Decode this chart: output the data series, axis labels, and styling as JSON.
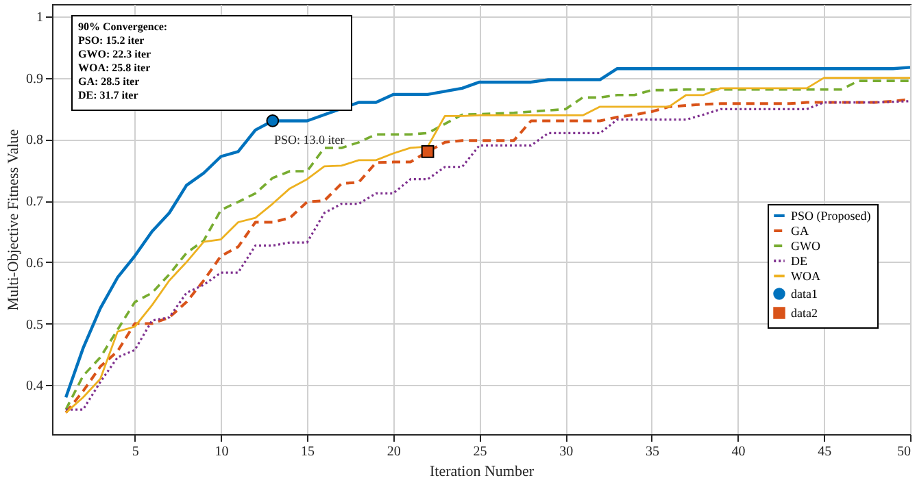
{
  "chart_data": {
    "type": "line",
    "xlabel": "Iteration Number",
    "ylabel": "Multi-Objective Fitness Value",
    "x": [
      1,
      2,
      3,
      4,
      5,
      6,
      7,
      8,
      9,
      10,
      11,
      12,
      13,
      14,
      15,
      16,
      17,
      18,
      19,
      20,
      21,
      22,
      23,
      24,
      25,
      26,
      27,
      28,
      29,
      30,
      31,
      32,
      33,
      34,
      35,
      36,
      37,
      38,
      39,
      40,
      41,
      42,
      43,
      44,
      45,
      46,
      47,
      48,
      49,
      50
    ],
    "xlim": [
      0.2,
      50
    ],
    "xticks": [
      5,
      10,
      15,
      20,
      25,
      30,
      35,
      40,
      45,
      50
    ],
    "ylim": [
      0.32,
      1.02
    ],
    "yticks": [
      0.4,
      0.5,
      0.6,
      0.7,
      0.8,
      0.9,
      {
        "value": 1,
        "label": "1"
      }
    ],
    "grid": true,
    "legend": "right",
    "series": [
      {
        "name": "PSO (Proposed)",
        "color": "#0072bd",
        "line_style": "solid",
        "values": [
          0.38,
          0.46,
          0.525,
          0.575,
          0.61,
          0.65,
          0.68,
          0.725,
          0.745,
          0.772,
          0.78,
          0.815,
          0.83,
          0.83,
          0.83,
          null,
          null,
          0.86,
          0.86,
          0.873,
          0.873,
          0.873,
          0.878,
          0.883,
          0.893,
          0.893,
          0.893,
          0.893,
          0.897,
          0.897,
          0.897,
          0.897,
          0.915,
          0.915,
          0.915,
          0.915,
          0.915,
          0.915,
          0.915,
          0.915,
          0.915,
          0.915,
          0.915,
          0.915,
          0.915,
          0.915,
          0.915,
          0.915,
          0.915,
          0.917
        ]
      },
      {
        "name": "GA",
        "color": "#d95319",
        "line_style": "dashed",
        "values": [
          0.355,
          0.39,
          0.43,
          0.455,
          0.5,
          0.5,
          0.51,
          0.535,
          0.57,
          0.61,
          0.625,
          0.665,
          0.665,
          0.672,
          0.698,
          0.7,
          0.728,
          0.73,
          0.762,
          0.763,
          0.763,
          0.78,
          0.795,
          0.798,
          0.798,
          0.798,
          0.798,
          0.83,
          0.83,
          0.83,
          0.83,
          0.83,
          0.836,
          0.84,
          0.845,
          0.853,
          0.855,
          0.857,
          0.858,
          0.858,
          0.858,
          0.858,
          0.858,
          0.86,
          0.86,
          0.86,
          0.86,
          0.86,
          0.862,
          0.865
        ]
      },
      {
        "name": "GWO",
        "color": "#77ac30",
        "line_style": "dashed",
        "values": [
          0.36,
          0.415,
          0.445,
          0.49,
          0.535,
          0.55,
          0.58,
          0.615,
          0.635,
          0.685,
          0.698,
          0.712,
          0.737,
          0.748,
          0.748,
          0.786,
          0.786,
          0.795,
          0.808,
          0.808,
          0.808,
          0.81,
          0.825,
          0.84,
          0.841,
          0.842,
          0.843,
          0.845,
          0.847,
          0.849,
          0.868,
          0.868,
          0.872,
          0.872,
          0.88,
          0.88,
          0.881,
          0.881,
          0.881,
          0.881,
          0.881,
          0.881,
          0.881,
          0.881,
          0.881,
          0.881,
          0.895,
          0.895,
          0.895,
          0.895
        ]
      },
      {
        "name": "DE",
        "color": "#7e2f8e",
        "line_style": "dotted",
        "values": [
          0.36,
          0.36,
          0.405,
          0.445,
          0.457,
          0.505,
          0.51,
          0.55,
          0.563,
          0.583,
          0.583,
          0.627,
          0.627,
          0.632,
          0.632,
          0.68,
          0.695,
          0.695,
          0.712,
          0.712,
          0.735,
          0.735,
          0.755,
          0.755,
          0.79,
          0.79,
          0.79,
          0.79,
          0.81,
          0.81,
          0.81,
          0.81,
          0.832,
          0.832,
          0.832,
          0.832,
          0.832,
          0.84,
          0.849,
          0.849,
          0.849,
          0.849,
          0.849,
          0.849,
          0.86,
          0.86,
          0.86,
          0.86,
          0.861,
          0.862
        ]
      },
      {
        "name": "WOA",
        "color": "#edb120",
        "line_style": "solid",
        "values": [
          0.355,
          0.38,
          0.41,
          0.487,
          0.495,
          0.53,
          0.57,
          0.6,
          0.633,
          0.637,
          0.665,
          0.672,
          0.695,
          0.72,
          0.735,
          0.756,
          0.757,
          0.766,
          0.766,
          0.777,
          0.786,
          0.788,
          0.838,
          0.838,
          0.839,
          0.839,
          0.839,
          0.839,
          0.839,
          0.839,
          0.839,
          0.853,
          0.853,
          0.853,
          0.853,
          0.853,
          0.872,
          0.872,
          0.883,
          0.883,
          0.883,
          0.883,
          0.883,
          0.883,
          0.9,
          0.9,
          0.9,
          0.9,
          0.9,
          0.9
        ]
      },
      {
        "name": "data1",
        "type": "scatter",
        "marker": "circle",
        "color": "#0072bd",
        "x": [
          13
        ],
        "values": [
          0.83
        ]
      },
      {
        "name": "data2",
        "type": "scatter",
        "marker": "square",
        "color": "#d95319",
        "x": [
          22
        ],
        "values": [
          0.78
        ]
      }
    ],
    "annotations": [
      "90% Convergence:\nPSO: 15.2 iter\nGWO: 22.3 iter\nWOA: 25.8 iter\nGA: 28.5 iter\nDE: 31.7 iter",
      "PSO: 13.0 iter"
    ]
  }
}
